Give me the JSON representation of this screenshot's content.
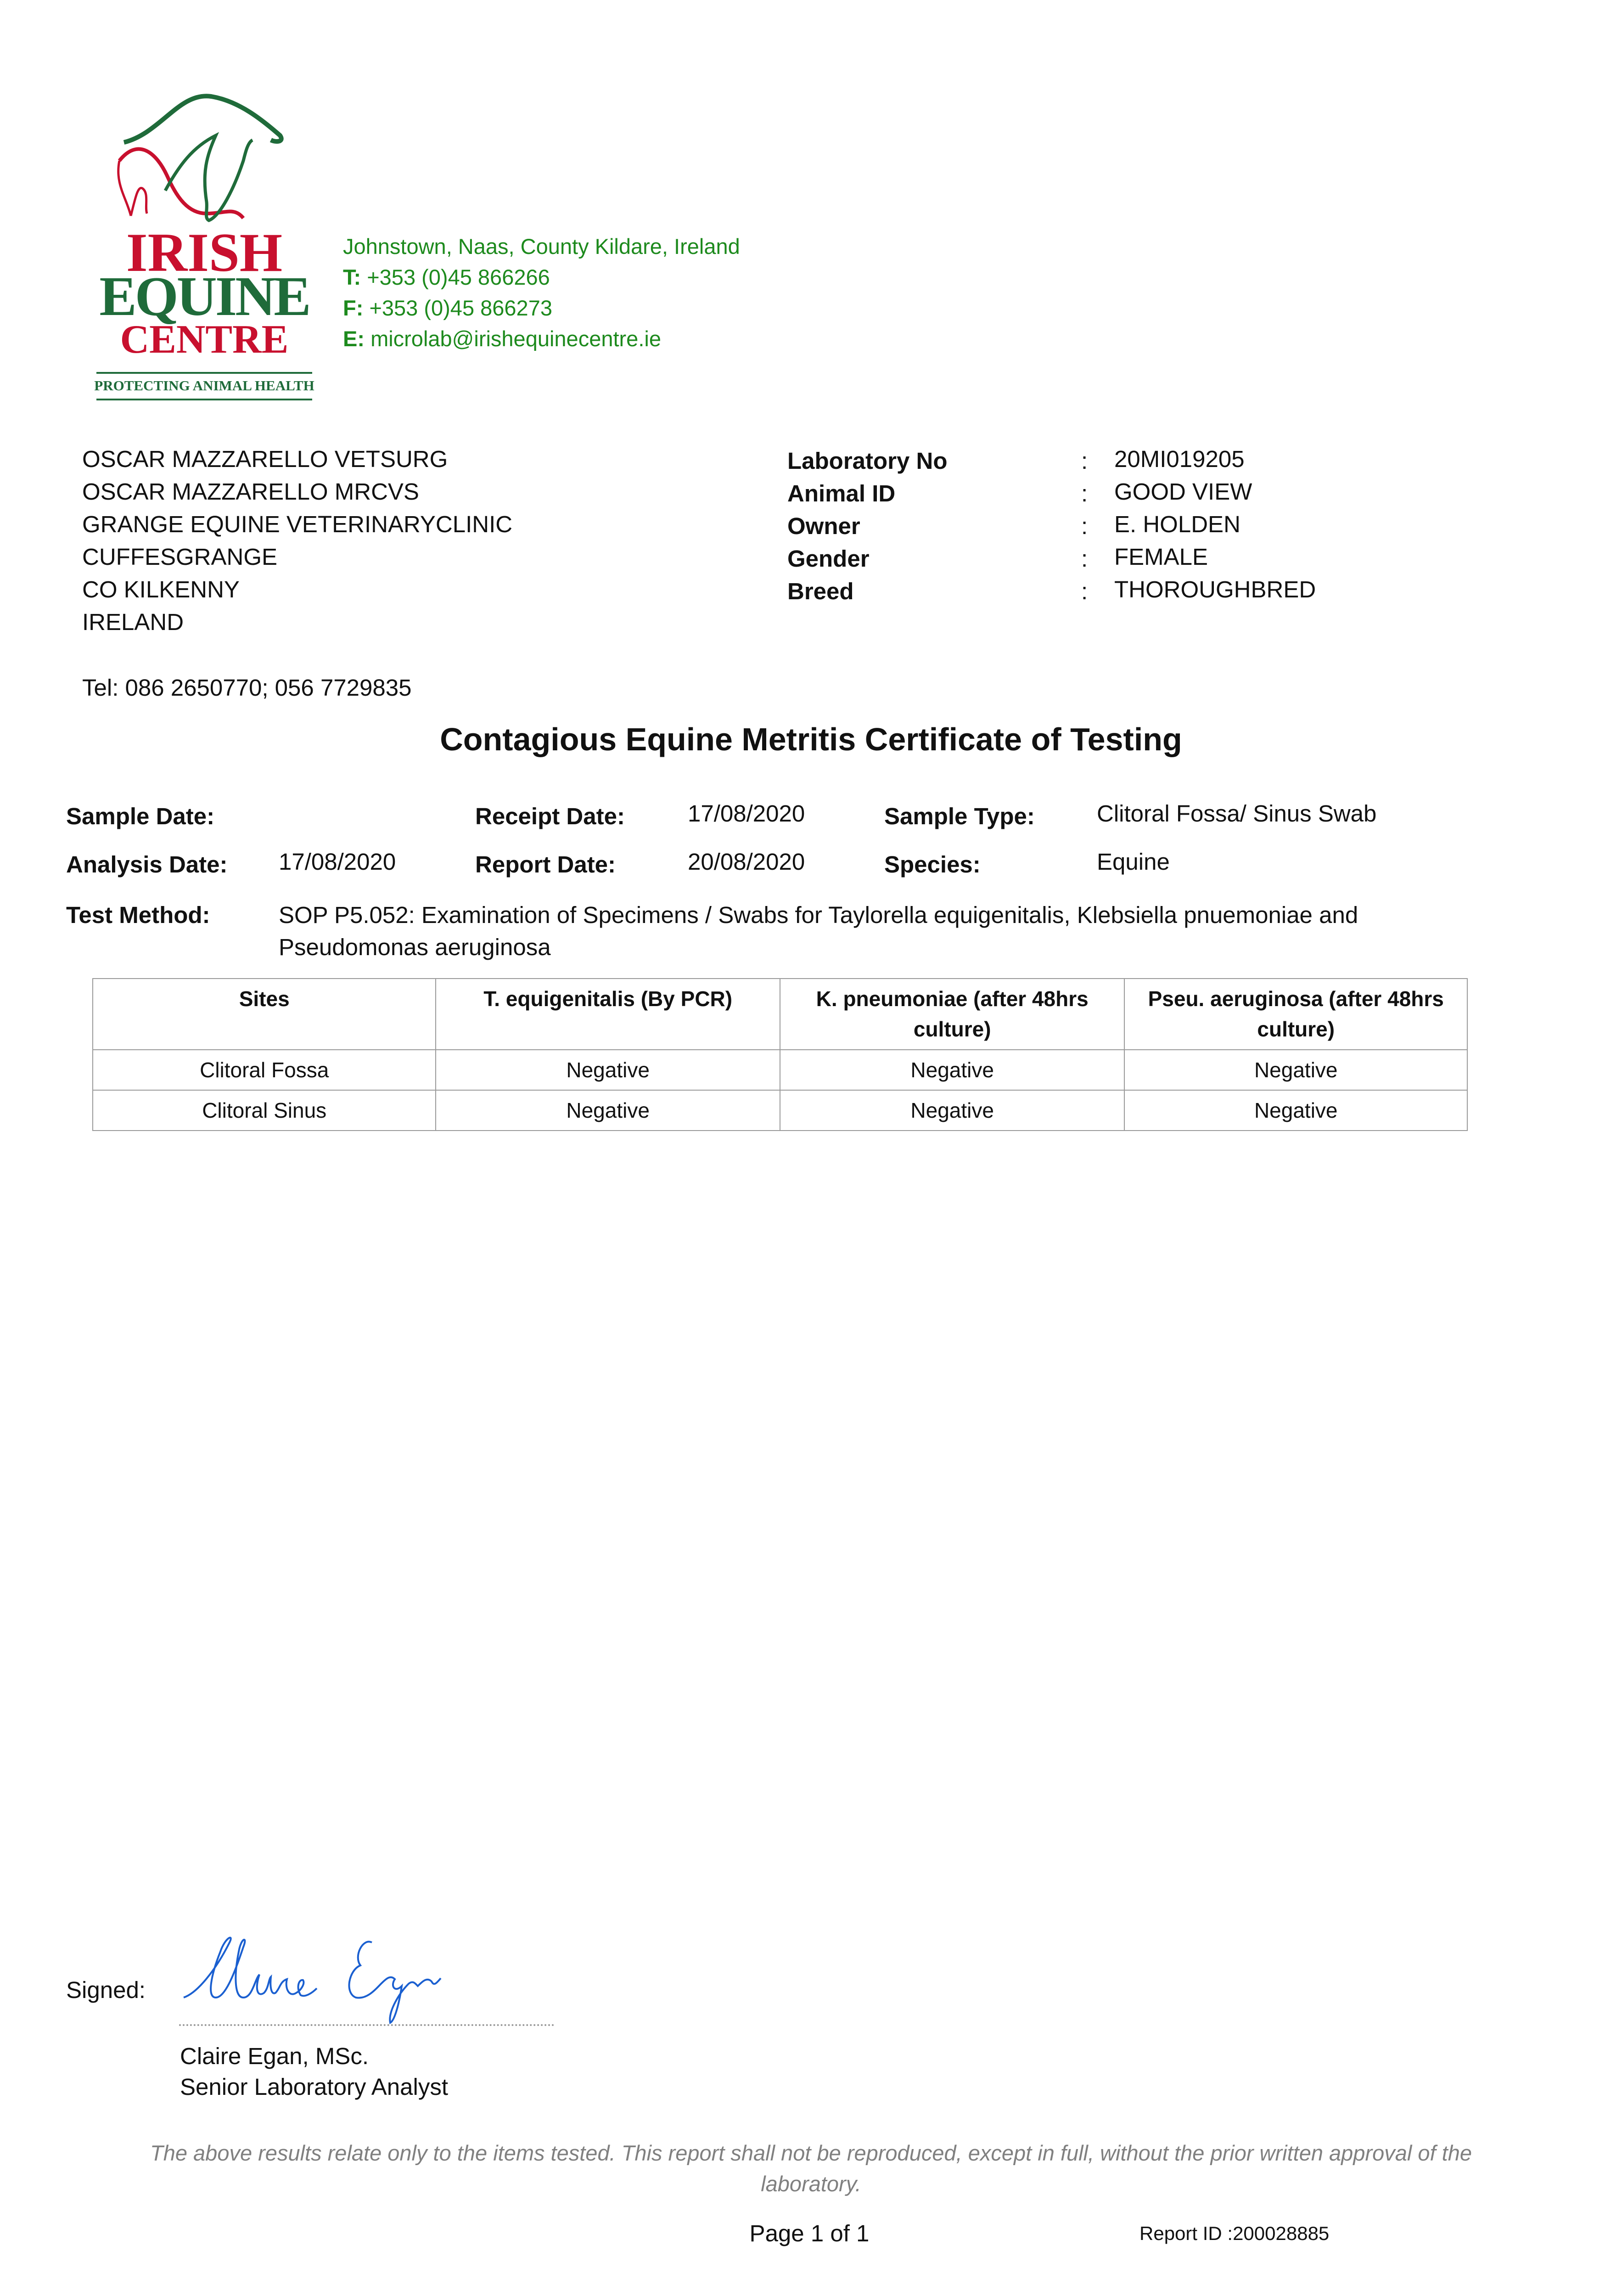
{
  "logo": {
    "line1": "IRISH",
    "line2": "EQUINE",
    "line3": "CENTRE",
    "tagline": "PROTECTING ANIMAL HEALTH",
    "colors": {
      "green": "#1f6b3a",
      "red": "#c8102e"
    }
  },
  "contact": {
    "address": "Johnstown, Naas, County Kildare, Ireland",
    "phone_label": "T:",
    "phone": "+353 (0)45 866266",
    "fax_label": "F:",
    "fax": "+353 (0)45 866273",
    "email_label": "E:",
    "email": "microlab@irishequinecentre.ie",
    "color": "#1d8a1d"
  },
  "recipient": {
    "lines": [
      "OSCAR MAZZARELLO  VETSURG",
      "OSCAR MAZZARELLO MRCVS",
      "GRANGE EQUINE VETERINARYCLINIC",
      "CUFFESGRANGE",
      "CO KILKENNY",
      "IRELAND"
    ],
    "tel": "Tel: 086 2650770; 056 7729835"
  },
  "animal": [
    {
      "label": "Laboratory No",
      "value": "20MI019205"
    },
    {
      "label": "Animal ID",
      "value": "GOOD VIEW"
    },
    {
      "label": "Owner",
      "value": "E. HOLDEN"
    },
    {
      "label": "Gender",
      "value": "FEMALE"
    },
    {
      "label": "Breed",
      "value": "THOROUGHBRED"
    }
  ],
  "separator": ":",
  "title": "Contagious Equine Metritis Certificate of Testing",
  "details": {
    "sample_date_label": "Sample Date:",
    "sample_date": "",
    "receipt_date_label": "Receipt Date:",
    "receipt_date": "17/08/2020",
    "sample_type_label": "Sample Type:",
    "sample_type": "Clitoral Fossa/ Sinus Swab",
    "analysis_date_label": "Analysis Date:",
    "analysis_date": "17/08/2020",
    "report_date_label": "Report Date:",
    "report_date": "20/08/2020",
    "species_label": "Species:",
    "species": "Equine",
    "test_method_label": "Test Method:",
    "test_method_line1": "SOP P5.052: Examination of Specimens / Swabs for Taylorella equigenitalis, Klebsiella pnuemoniae and",
    "test_method_line2": "Pseudomonas aeruginosa"
  },
  "results": {
    "headers": [
      "Sites",
      "T. equigenitalis (By PCR)",
      "K. pneumoniae (after 48hrs culture)",
      "Pseu. aeruginosa (after 48hrs culture)"
    ],
    "rows": [
      [
        "Clitoral Fossa",
        "Negative",
        "Negative",
        "Negative"
      ],
      [
        "Clitoral Sinus",
        "Negative",
        "Negative",
        "Negative"
      ]
    ]
  },
  "signature": {
    "signed_label": "Signed:",
    "signature_text": "Claire Egan",
    "name": "Claire Egan, MSc.",
    "role": "Senior Laboratory Analyst",
    "ink_color": "#1a5fd0"
  },
  "footer": {
    "disclaimer": "The above results relate only to the items tested. This report shall not be reproduced, except in full, without the prior written approval of the laboratory.",
    "page": "Page 1 of 1",
    "report_id": "Report ID :200028885"
  }
}
